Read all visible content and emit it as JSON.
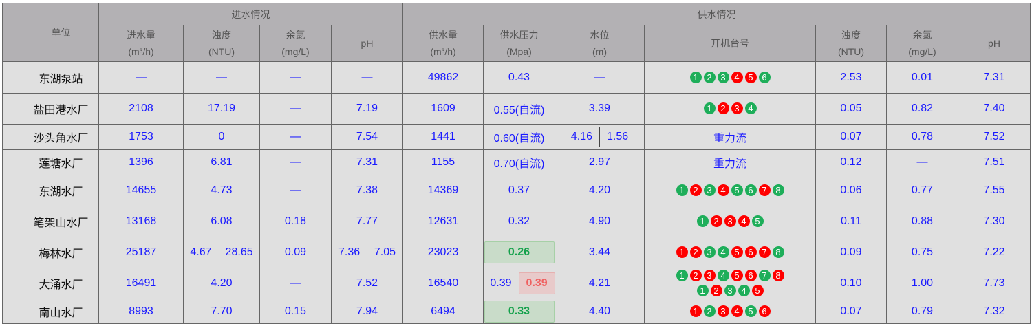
{
  "header": {
    "unit": "单位",
    "inflow_group": "进水情况",
    "supply_group": "供水情况",
    "inflow_cols": [
      [
        "进水量",
        "(m³/h)"
      ],
      [
        "浊度",
        "(NTU)"
      ],
      [
        "余氯",
        "(mg/L)"
      ],
      [
        "pH",
        ""
      ]
    ],
    "supply_cols": [
      [
        "供水量",
        "(m³/h)"
      ],
      [
        "供水压力",
        "(Mpa)"
      ],
      [
        "水位",
        "(m)"
      ],
      [
        "开机台号",
        ""
      ],
      [
        "浊度",
        "(NTU)"
      ],
      [
        "余氯",
        "(mg/L)"
      ],
      [
        "pH",
        ""
      ]
    ]
  },
  "colors": {
    "on": "#1eae5a",
    "off": "#ff0000"
  },
  "rows": [
    {
      "name": "东湖泵站",
      "cells": [
        "—",
        "—",
        "—",
        "—",
        "49862",
        "0.43",
        "—",
        {
          "circles": [
            [
              "1",
              "g"
            ],
            [
              "2",
              "g"
            ],
            [
              "3",
              "g"
            ],
            [
              "4",
              "r"
            ],
            [
              "5",
              "r"
            ],
            [
              "6",
              "g"
            ]
          ]
        },
        "2.53",
        "0.01",
        "7.31"
      ]
    },
    {
      "name": "盐田港水厂",
      "cells": [
        "2108",
        "17.19",
        "—",
        "7.19",
        "1609",
        "0.55(自流)",
        "3.39",
        {
          "circles": [
            [
              "1",
              "g"
            ],
            [
              "2",
              "r"
            ],
            [
              "3",
              "r"
            ],
            [
              "4",
              "g"
            ]
          ]
        },
        "0.05",
        "0.82",
        "7.40"
      ]
    },
    {
      "name": "沙头角水厂",
      "cells": [
        "1753",
        "0",
        "—",
        "7.54",
        "1441",
        "0.60(自流)",
        {
          "split": [
            "4.16",
            "1.56"
          ]
        },
        "重力流",
        "0.07",
        "0.78",
        "7.52"
      ]
    },
    {
      "name": "莲塘水厂",
      "cells": [
        "1396",
        "6.81",
        "—",
        "7.31",
        "1155",
        "0.70(自流)",
        "2.97",
        "重力流",
        "0.12",
        "—",
        "7.51"
      ]
    },
    {
      "name": "东湖水厂",
      "cells": [
        "14655",
        "4.73",
        "—",
        "7.38",
        "14369",
        "0.37",
        "4.20",
        {
          "circles": [
            [
              "1",
              "g"
            ],
            [
              "2",
              "r"
            ],
            [
              "3",
              "g"
            ],
            [
              "4",
              "r"
            ],
            [
              "5",
              "g"
            ],
            [
              "6",
              "g"
            ],
            [
              "7",
              "r"
            ],
            [
              "8",
              "g"
            ]
          ]
        },
        "0.06",
        "0.77",
        "7.55"
      ]
    },
    {
      "name": "笔架山水厂",
      "cells": [
        "13168",
        "6.08",
        "0.18",
        "7.77",
        "12631",
        "0.32",
        "4.90",
        {
          "circles": [
            [
              "1",
              "g"
            ],
            [
              "2",
              "r"
            ],
            [
              "3",
              "r"
            ],
            [
              "4",
              "r"
            ],
            [
              "5",
              "g"
            ]
          ]
        },
        "0.11",
        "0.88",
        "7.30"
      ]
    },
    {
      "name": "梅林水厂",
      "cells": [
        "25187",
        {
          "split": [
            "4.67",
            "28.65"
          ]
        },
        "0.09",
        {
          "split": [
            "7.36",
            "7.05"
          ]
        },
        "23023",
        {
          "hl": "0.26",
          "c": "green"
        },
        "3.44",
        {
          "circles": [
            [
              "1",
              "r"
            ],
            [
              "2",
              "r"
            ],
            [
              "3",
              "g"
            ],
            [
              "4",
              "g"
            ],
            [
              "5",
              "r"
            ],
            [
              "6",
              "r"
            ],
            [
              "7",
              "r"
            ],
            [
              "8",
              "g"
            ]
          ]
        },
        "0.09",
        "0.75",
        "7.22"
      ]
    },
    {
      "name": "大涌水厂",
      "cells": [
        "16491",
        "4.20",
        "—",
        "7.52",
        "16540",
        {
          "split": [
            "0.39"
          ],
          "hl": "0.39",
          "c": "red"
        },
        "4.21",
        {
          "circles": [
            [
              "1",
              "g"
            ],
            [
              "2",
              "r"
            ],
            [
              "3",
              "r"
            ],
            [
              "4",
              "g"
            ],
            [
              "5",
              "r"
            ],
            [
              "6",
              "r"
            ],
            [
              "7",
              "g"
            ],
            [
              "8",
              "r"
            ]
          ],
          "circles2": [
            [
              "1",
              "g"
            ],
            [
              "2",
              "r"
            ],
            [
              "3",
              "g"
            ],
            [
              "4",
              "g"
            ],
            [
              "5",
              "r"
            ]
          ]
        },
        "0.10",
        "1.00",
        "7.73"
      ]
    },
    {
      "name": "南山水厂",
      "cells": [
        "8993",
        "7.70",
        "0.15",
        "7.94",
        "6494",
        {
          "hl": "0.33",
          "c": "green"
        },
        "4.40",
        {
          "circles": [
            [
              "1",
              "r"
            ],
            [
              "2",
              "g"
            ],
            [
              "3",
              "r"
            ],
            [
              "4",
              "r"
            ],
            [
              "5",
              "g"
            ],
            [
              "6",
              "r"
            ]
          ]
        },
        "0.07",
        "0.79",
        "7.32"
      ]
    }
  ]
}
